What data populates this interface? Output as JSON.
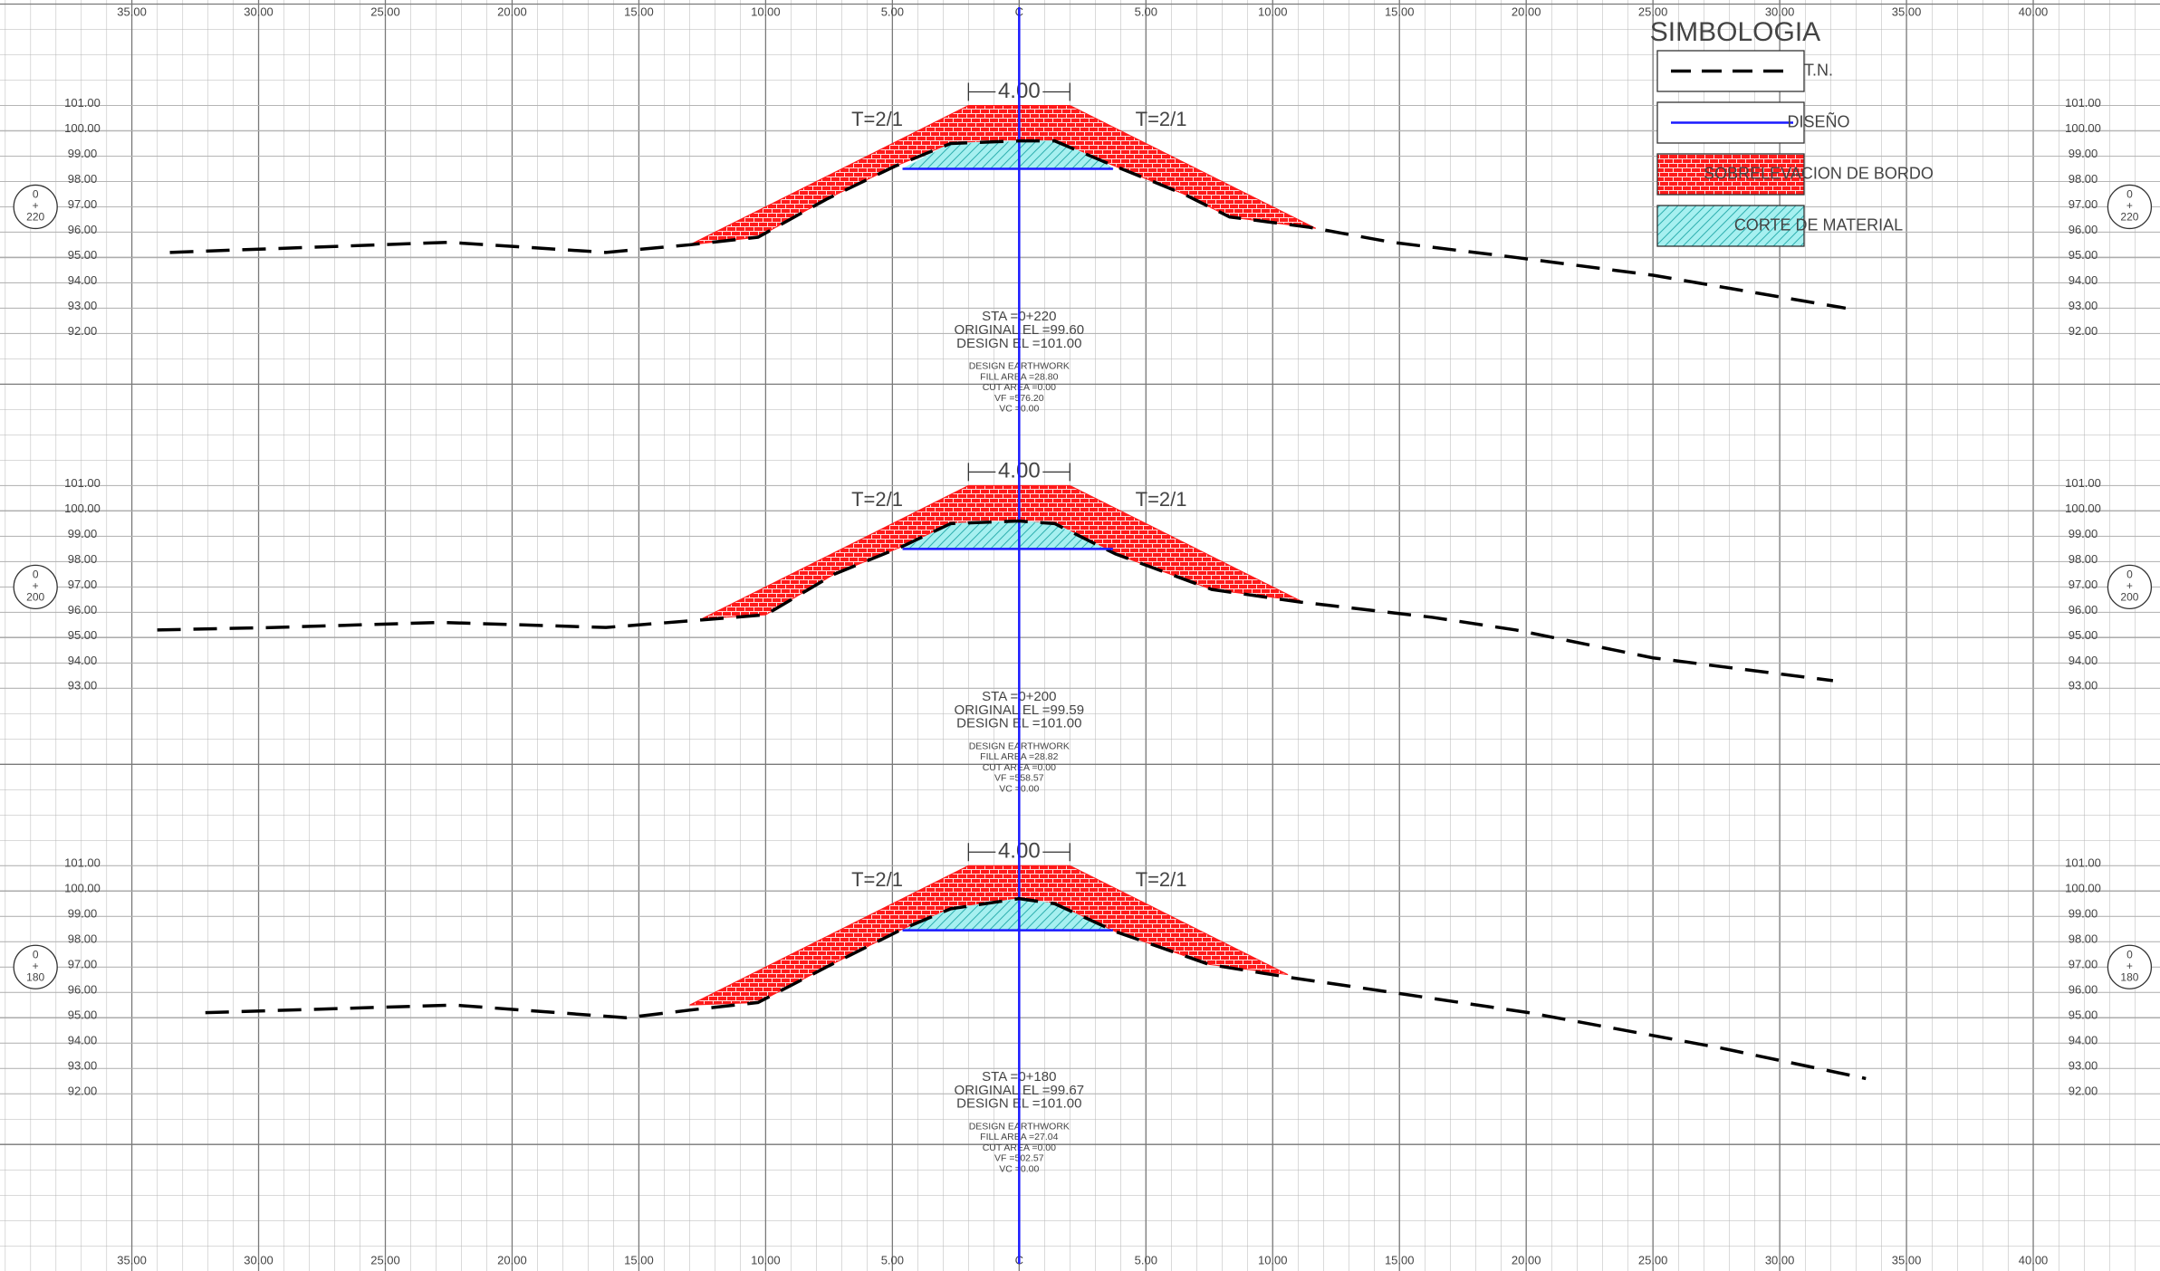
{
  "legend_title": "SIMBOLOGIA",
  "x_axis": {
    "xlim": [
      -40.2,
      45
    ],
    "xticks": [
      {
        "value": -35,
        "label": "35.00"
      },
      {
        "value": -30,
        "label": "30.00"
      },
      {
        "value": -25,
        "label": "25.00"
      },
      {
        "value": -20,
        "label": "20.00"
      },
      {
        "value": -15,
        "label": "15.00"
      },
      {
        "value": -10,
        "label": "10.00"
      },
      {
        "value": -5,
        "label": "5.00"
      },
      {
        "value": 0,
        "label": "C"
      },
      {
        "value": 5,
        "label": "5.00"
      },
      {
        "value": 10,
        "label": "10.00"
      },
      {
        "value": 15,
        "label": "15.00"
      },
      {
        "value": 20,
        "label": "20.00"
      },
      {
        "value": 25,
        "label": "25.00"
      },
      {
        "value": 30,
        "label": "30.00"
      },
      {
        "value": 35,
        "label": "35.00"
      },
      {
        "value": 40,
        "label": "40.00"
      }
    ]
  },
  "chart_data": [
    {
      "type": "section",
      "station": [
        "0",
        "+",
        "220"
      ],
      "ylim": [
        90,
        105
      ],
      "yticks": [
        {
          "value": 101,
          "label": "101.00"
        },
        {
          "value": 100,
          "label": "100.00"
        },
        {
          "value": 99,
          "label": "99.00"
        },
        {
          "value": 98,
          "label": "98.00"
        },
        {
          "value": 97,
          "label": "97.00"
        },
        {
          "value": 96,
          "label": "96.00"
        },
        {
          "value": 95,
          "label": "95.00"
        },
        {
          "value": 94,
          "label": "94.00"
        },
        {
          "value": 93,
          "label": "93.00"
        },
        {
          "value": 92,
          "label": "92.00"
        }
      ],
      "dimension": "4.00",
      "slope_labels": [
        "T=2/1",
        "T=2/1"
      ],
      "info": [
        "STA =0+220",
        "ORIGINAL EL =99.60",
        "DESIGN EL =101.00"
      ],
      "earthwork": [
        "DESIGN EARTHWORK",
        "FILL AREA =28.80",
        "CUT AREA =0.00",
        "VF =576.20",
        "VC =0.00"
      ],
      "series": [
        {
          "name": "T.N.",
          "type": "line",
          "style": "dashed",
          "color": "#000000",
          "x": [
            -33.5,
            -22.5,
            -16.3,
            -13.0,
            -10.3,
            -7.6,
            -4.9,
            -2.7,
            0,
            1.4,
            3.3,
            6.5,
            8.3,
            11.4,
            14.7,
            19.6,
            25.0,
            32.6
          ],
          "values": [
            95.2,
            95.6,
            95.2,
            95.5,
            95.8,
            97.3,
            98.6,
            99.5,
            99.6,
            99.6,
            98.8,
            97.5,
            96.6,
            96.2,
            95.6,
            95.0,
            94.3,
            93.0
          ]
        },
        {
          "name": "DISEÑO",
          "type": "line",
          "style": "solid",
          "color": "#1a1aff",
          "x": [
            -4.6,
            3.7
          ],
          "values": [
            98.5,
            98.5
          ]
        },
        {
          "name": "SOBRELEVACION DE BORDO",
          "type": "area",
          "hatch": "brick",
          "color": "#ff1a1a",
          "x": [
            -13.0,
            -2.0,
            2.0,
            11.7,
            8.3,
            6.5,
            3.3,
            1.4,
            0,
            -2.7,
            -4.9,
            -7.6,
            -10.3
          ],
          "values": [
            95.5,
            101,
            101,
            96.15,
            96.6,
            97.5,
            98.8,
            99.6,
            99.6,
            99.5,
            98.6,
            97.3,
            95.8
          ]
        },
        {
          "name": "CORTE DE MATERIAL",
          "type": "area",
          "hatch": "diagonal",
          "color": "#a6f0f0",
          "x": [
            -4.6,
            -2.7,
            0,
            1.4,
            3.3,
            3.7
          ],
          "values": [
            98.5,
            99.5,
            99.6,
            99.6,
            98.8,
            98.5
          ]
        }
      ]
    },
    {
      "type": "section",
      "station": [
        "0",
        "+",
        "200"
      ],
      "ylim": [
        90,
        105
      ],
      "yticks": [
        {
          "value": 101,
          "label": "101.00"
        },
        {
          "value": 100,
          "label": "100.00"
        },
        {
          "value": 99,
          "label": "99.00"
        },
        {
          "value": 98,
          "label": "98.00"
        },
        {
          "value": 97,
          "label": "97.00"
        },
        {
          "value": 96,
          "label": "96.00"
        },
        {
          "value": 95,
          "label": "95.00"
        },
        {
          "value": 94,
          "label": "94.00"
        },
        {
          "value": 93,
          "label": "93.00"
        }
      ],
      "dimension": "4.00",
      "slope_labels": [
        "T=2/1",
        "T=2/1"
      ],
      "info": [
        "STA =0+200",
        "ORIGINAL EL =99.59",
        "DESIGN EL =101.00"
      ],
      "earthwork": [
        "DESIGN EARTHWORK",
        "FILL AREA =28.82",
        "CUT AREA =0.00",
        "VF =558.57",
        "VC =0.00"
      ],
      "series": [
        {
          "name": "T.N.",
          "type": "line",
          "style": "dashed",
          "color": "#000000",
          "x": [
            -34.0,
            -29.4,
            -22.8,
            -16.3,
            -12.5,
            -10.0,
            -7.3,
            -4.6,
            -2.7,
            0,
            1.4,
            3.8,
            7.6,
            11.1,
            16.3,
            19.6,
            25.0,
            32.1
          ],
          "values": [
            95.3,
            95.4,
            95.6,
            95.4,
            95.7,
            95.9,
            97.5,
            98.6,
            99.5,
            99.6,
            99.5,
            98.3,
            96.9,
            96.4,
            95.8,
            95.3,
            94.2,
            93.3
          ]
        },
        {
          "name": "DISEÑO",
          "type": "line",
          "style": "solid",
          "color": "#1a1aff",
          "x": [
            -4.6,
            3.7
          ],
          "values": [
            98.5,
            98.5
          ]
        },
        {
          "name": "SOBRELEVACION DE BORDO",
          "type": "area",
          "hatch": "brick",
          "color": "#ff1a1a",
          "x": [
            -12.5,
            -2,
            2,
            11.1,
            7.6,
            3.8,
            1.4,
            0,
            -2.7,
            -4.6,
            -7.3,
            -10.0
          ],
          "values": [
            95.75,
            101,
            101,
            96.45,
            96.9,
            98.3,
            99.5,
            99.6,
            99.5,
            98.6,
            97.5,
            95.9
          ]
        },
        {
          "name": "CORTE DE MATERIAL",
          "type": "area",
          "hatch": "diagonal",
          "color": "#a6f0f0",
          "x": [
            -4.6,
            -2.7,
            0,
            1.4,
            3.4
          ],
          "values": [
            98.5,
            99.5,
            99.6,
            99.5,
            98.5
          ]
        }
      ]
    },
    {
      "type": "section",
      "station": [
        "0",
        "+",
        "180"
      ],
      "ylim": [
        90,
        105
      ],
      "yticks": [
        {
          "value": 101,
          "label": "101.00"
        },
        {
          "value": 100,
          "label": "100.00"
        },
        {
          "value": 99,
          "label": "99.00"
        },
        {
          "value": 98,
          "label": "98.00"
        },
        {
          "value": 97,
          "label": "97.00"
        },
        {
          "value": 96,
          "label": "96.00"
        },
        {
          "value": 95,
          "label": "95.00"
        },
        {
          "value": 94,
          "label": "94.00"
        },
        {
          "value": 93,
          "label": "93.00"
        },
        {
          "value": 92,
          "label": "92.00"
        }
      ],
      "dimension": "4.00",
      "slope_labels": [
        "T=2/1",
        "T=2/1"
      ],
      "info": [
        "STA =0+180",
        "ORIGINAL EL =99.67",
        "DESIGN EL =101.00"
      ],
      "earthwork": [
        "DESIGN EARTHWORK",
        "FILL AREA =27.04",
        "CUT AREA =0.00",
        "VF =502.57",
        "VC =0.00"
      ],
      "series": [
        {
          "name": "T.N.",
          "type": "line",
          "style": "dashed",
          "color": "#000000",
          "x": [
            -32.1,
            -22.3,
            -15.5,
            -13.0,
            -10.3,
            -7.6,
            -4.6,
            -2.7,
            0,
            1.4,
            3.8,
            7.5,
            10.6,
            14.7,
            20.1,
            27.7,
            33.4
          ],
          "values": [
            95.2,
            95.5,
            95.0,
            95.3,
            95.6,
            97.0,
            98.5,
            99.3,
            99.7,
            99.5,
            98.4,
            97.1,
            96.6,
            96.0,
            95.2,
            93.8,
            92.6
          ]
        },
        {
          "name": "DISEÑO",
          "type": "line",
          "style": "solid",
          "color": "#1a1aff",
          "x": [
            -4.6,
            3.7
          ],
          "values": [
            98.45,
            98.45
          ]
        },
        {
          "name": "SOBRELEVACION DE BORDO",
          "type": "area",
          "hatch": "brick",
          "color": "#ff1a1a",
          "x": [
            -13.0,
            -2,
            2,
            10.6,
            7.5,
            3.8,
            1.4,
            0,
            -2.7,
            -4.6,
            -7.6,
            -10.3
          ],
          "values": [
            95.5,
            101,
            101,
            96.7,
            97.1,
            98.4,
            99.5,
            99.7,
            99.3,
            98.5,
            97.0,
            95.6
          ]
        },
        {
          "name": "CORTE DE MATERIAL",
          "type": "area",
          "hatch": "diagonal",
          "color": "#a6f0f0",
          "x": [
            -4.6,
            -2.7,
            0,
            1.4,
            3.6
          ],
          "values": [
            98.45,
            99.3,
            99.7,
            99.5,
            98.45
          ]
        }
      ]
    }
  ]
}
